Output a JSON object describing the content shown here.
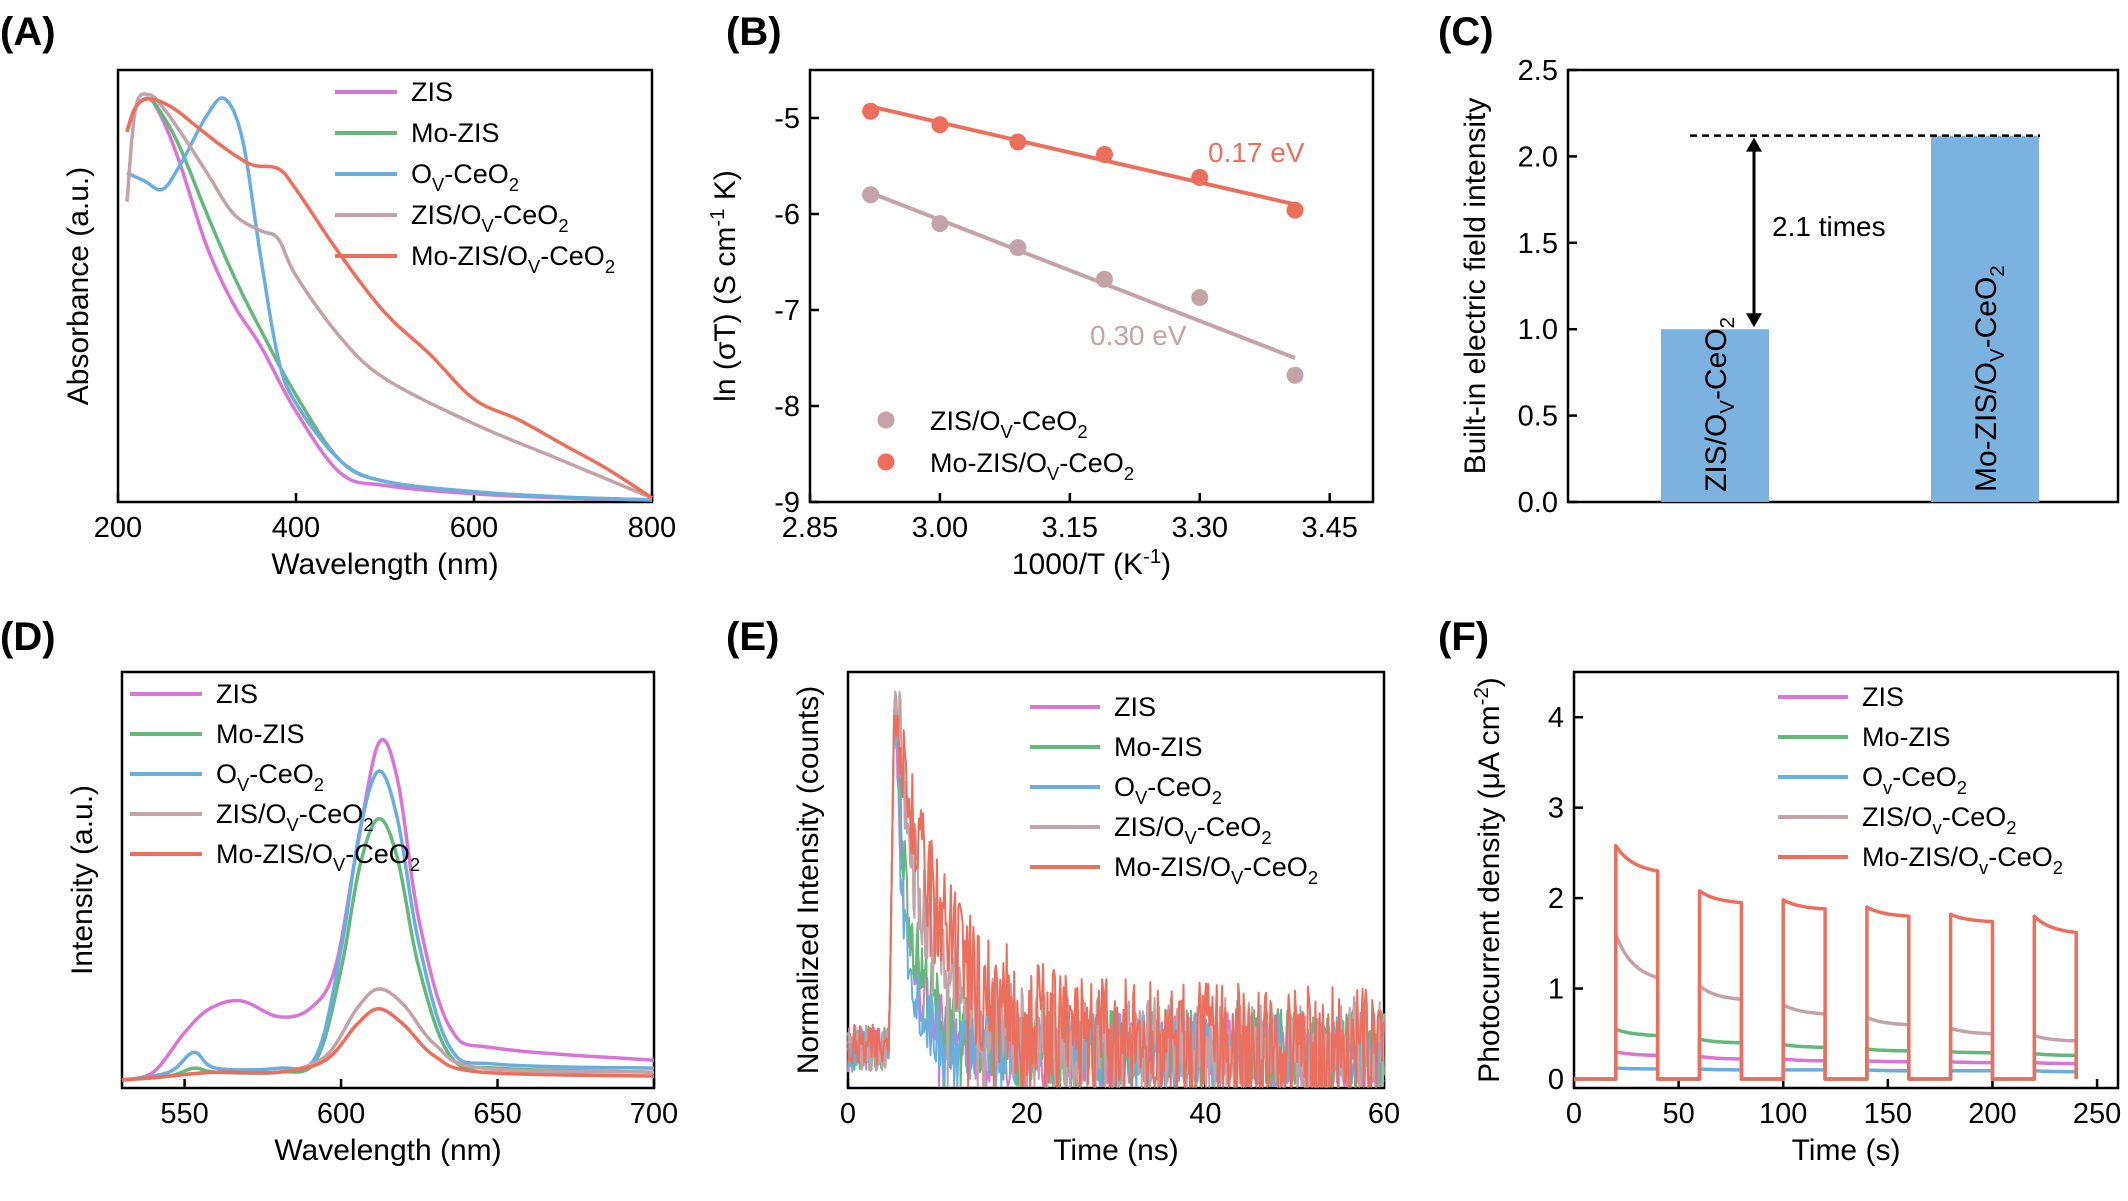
{
  "chart_data": [
    {
      "id": "A",
      "panel_label": "(A)",
      "type": "line",
      "title": "",
      "xlabel": "Wavelength (nm)",
      "ylabel": "Absorbance (a.u.)",
      "xlim": [
        200,
        800
      ],
      "ylim": [
        0,
        1.05
      ],
      "xticks": [
        200,
        400,
        600,
        800
      ],
      "yticks": [],
      "grid": false,
      "legend_position": "top-right",
      "series": [
        {
          "name": "ZIS",
          "color": "#d975d4",
          "x": [
            210,
            220,
            235,
            250,
            270,
            300,
            330,
            360,
            400,
            450,
            500,
            600,
            700,
            800
          ],
          "y": [
            0.9,
            0.96,
            0.98,
            0.93,
            0.82,
            0.62,
            0.48,
            0.38,
            0.22,
            0.07,
            0.04,
            0.02,
            0.01,
            0.005
          ]
        },
        {
          "name": "Mo-ZIS",
          "color": "#63b87a",
          "x": [
            210,
            220,
            235,
            250,
            270,
            300,
            330,
            360,
            400,
            450,
            500,
            600,
            700,
            800
          ],
          "y": [
            0.9,
            0.96,
            0.98,
            0.94,
            0.86,
            0.7,
            0.55,
            0.42,
            0.26,
            0.1,
            0.05,
            0.025,
            0.012,
            0.005
          ]
        },
        {
          "name": "OV-CeO2",
          "color": "#6aaedf",
          "x": [
            210,
            230,
            250,
            270,
            300,
            320,
            340,
            360,
            380,
            400,
            450,
            500,
            600,
            700,
            800
          ],
          "y": [
            0.8,
            0.78,
            0.76,
            0.82,
            0.94,
            0.98,
            0.88,
            0.6,
            0.35,
            0.24,
            0.1,
            0.05,
            0.025,
            0.012,
            0.005
          ]
        },
        {
          "name": "ZIS/OV-CeO2",
          "color": "#c4a3a8",
          "x": [
            210,
            220,
            235,
            250,
            270,
            300,
            330,
            360,
            380,
            400,
            450,
            500,
            600,
            700,
            800
          ],
          "y": [
            0.73,
            0.96,
            0.99,
            0.96,
            0.9,
            0.8,
            0.7,
            0.66,
            0.64,
            0.55,
            0.4,
            0.3,
            0.19,
            0.1,
            0.01
          ]
        },
        {
          "name": "Mo-ZIS/OV-CeO2",
          "color": "#ec6f5e",
          "x": [
            210,
            220,
            235,
            260,
            290,
            320,
            350,
            380,
            400,
            450,
            500,
            550,
            600,
            650,
            700,
            750,
            800
          ],
          "y": [
            0.9,
            0.96,
            0.98,
            0.96,
            0.91,
            0.86,
            0.82,
            0.81,
            0.76,
            0.6,
            0.46,
            0.36,
            0.25,
            0.2,
            0.14,
            0.08,
            0.01
          ]
        }
      ]
    },
    {
      "id": "B",
      "panel_label": "(B)",
      "type": "scatter",
      "title": "",
      "xlabel": "1000/T (K-1)",
      "ylabel": "ln (σT) (S cm-1 K)",
      "xlim": [
        2.85,
        3.5
      ],
      "ylim": [
        -9,
        -4.5
      ],
      "xticks": [
        2.85,
        3.0,
        3.15,
        3.3,
        3.45
      ],
      "xtick_labels": [
        "2.85",
        "3.00",
        "3.15",
        "3.30",
        "3.45"
      ],
      "yticks": [
        -9,
        -8,
        -7,
        -6,
        -5
      ],
      "grid": false,
      "legend_position": "bottom-left",
      "series": [
        {
          "name": "ZIS/OV-CeO2",
          "color": "#c4a3a8",
          "x": [
            2.92,
            3.0,
            3.09,
            3.19,
            3.3,
            3.41
          ],
          "y": [
            -5.8,
            -6.1,
            -6.35,
            -6.68,
            -6.87,
            -7.68
          ],
          "fit": [
            [
              2.92,
              -5.78
            ],
            [
              3.41,
              -7.5
            ]
          ],
          "annotation": "0.30 eV"
        },
        {
          "name": "Mo-ZIS/OV-CeO2",
          "color": "#ec6f5e",
          "x": [
            2.92,
            3.0,
            3.09,
            3.19,
            3.3,
            3.41
          ],
          "y": [
            -4.93,
            -5.07,
            -5.25,
            -5.38,
            -5.62,
            -5.96
          ],
          "fit": [
            [
              2.92,
              -4.88
            ],
            [
              3.41,
              -5.9
            ]
          ],
          "annotation": "0.17 eV"
        }
      ]
    },
    {
      "id": "C",
      "panel_label": "(C)",
      "type": "bar",
      "title": "",
      "xlabel": "",
      "ylabel": "Built-in electric field intensity",
      "ylim": [
        0,
        2.5
      ],
      "yticks": [
        0.0,
        0.5,
        1.0,
        1.5,
        2.0,
        2.5
      ],
      "ytick_labels": [
        "0.0",
        "0.5",
        "1.0",
        "1.5",
        "2.0",
        "2.5"
      ],
      "grid": false,
      "bar_color": "#7cb2df",
      "categories": [
        "ZIS/OV-CeO2",
        "Mo-ZIS/OV-CeO2"
      ],
      "values": [
        1.0,
        2.12
      ],
      "annotation": "2.1 times"
    },
    {
      "id": "D",
      "panel_label": "(D)",
      "type": "line",
      "title": "",
      "xlabel": "Wavelength (nm)",
      "ylabel": "Intensity (a.u.)",
      "xlim": [
        530,
        700
      ],
      "ylim": [
        0,
        1.05
      ],
      "xticks": [
        550,
        600,
        650,
        700
      ],
      "yticks": [],
      "grid": false,
      "legend_position": "top-left",
      "series": [
        {
          "name": "ZIS",
          "color": "#d975d4",
          "x": [
            530,
            540,
            550,
            558,
            568,
            580,
            590,
            598,
            605,
            612,
            618,
            625,
            635,
            650,
            700
          ],
          "y": [
            0.02,
            0.04,
            0.14,
            0.2,
            0.22,
            0.18,
            0.2,
            0.3,
            0.6,
            0.87,
            0.78,
            0.42,
            0.15,
            0.1,
            0.07
          ]
        },
        {
          "name": "Mo-ZIS",
          "color": "#63b87a",
          "x": [
            530,
            545,
            553,
            560,
            580,
            592,
            600,
            606,
            612,
            618,
            625,
            635,
            650,
            700
          ],
          "y": [
            0.02,
            0.03,
            0.05,
            0.04,
            0.04,
            0.07,
            0.3,
            0.56,
            0.68,
            0.58,
            0.3,
            0.08,
            0.05,
            0.04
          ]
        },
        {
          "name": "OV-CeO2",
          "color": "#6aaedf",
          "x": [
            530,
            545,
            553,
            560,
            580,
            592,
            600,
            606,
            612,
            618,
            625,
            635,
            650,
            700
          ],
          "y": [
            0.02,
            0.04,
            0.09,
            0.05,
            0.05,
            0.08,
            0.35,
            0.65,
            0.8,
            0.68,
            0.36,
            0.1,
            0.06,
            0.05
          ]
        },
        {
          "name": "ZIS/OV-CeO2",
          "color": "#c4a3a8",
          "x": [
            530,
            545,
            560,
            580,
            595,
            605,
            612,
            620,
            630,
            645,
            700
          ],
          "y": [
            0.02,
            0.03,
            0.04,
            0.04,
            0.08,
            0.2,
            0.25,
            0.21,
            0.11,
            0.05,
            0.04
          ]
        },
        {
          "name": "Mo-ZIS/OV-CeO2",
          "color": "#ec6f5e",
          "x": [
            530,
            545,
            560,
            580,
            595,
            605,
            612,
            620,
            630,
            645,
            700
          ],
          "y": [
            0.02,
            0.03,
            0.04,
            0.04,
            0.07,
            0.16,
            0.2,
            0.16,
            0.08,
            0.04,
            0.03
          ]
        }
      ]
    },
    {
      "id": "E",
      "panel_label": "(E)",
      "type": "line",
      "title": "",
      "xlabel": "Time (ns)",
      "ylabel": "Normalized Intensity (counts)",
      "xlim": [
        0,
        60
      ],
      "ylim": [
        0,
        1.05
      ],
      "xticks": [
        0,
        20,
        40,
        60
      ],
      "yticks": [],
      "grid": false,
      "legend_position": "top-right",
      "series": [
        {
          "name": "ZIS",
          "color": "#d975d4",
          "tau": 2.2,
          "noise": 0.09
        },
        {
          "name": "Mo-ZIS",
          "color": "#63b87a",
          "tau": 2.8,
          "noise": 0.1
        },
        {
          "name": "OV-CeO2",
          "color": "#6aaedf",
          "tau": 1.8,
          "noise": 0.09
        },
        {
          "name": "ZIS/OV-CeO2",
          "color": "#c4a3a8",
          "tau": 5.5,
          "noise": 0.13
        },
        {
          "name": "Mo-ZIS/OV-CeO2",
          "color": "#ec6f5e",
          "tau": 7.5,
          "noise": 0.16
        }
      ]
    },
    {
      "id": "F",
      "panel_label": "(F)",
      "type": "line",
      "title": "",
      "xlabel": "Time (s)",
      "ylabel": "Photocurrent density (μA cm-2)",
      "xlim": [
        0,
        260
      ],
      "ylim": [
        -0.1,
        4.5
      ],
      "xticks": [
        0,
        50,
        100,
        150,
        200,
        250
      ],
      "yticks": [
        0,
        1,
        2,
        3,
        4
      ],
      "grid": false,
      "legend_position": "top-right",
      "light_on_intervals": [
        [
          20,
          40
        ],
        [
          60,
          80
        ],
        [
          100,
          120
        ],
        [
          140,
          160
        ],
        [
          180,
          200
        ],
        [
          220,
          240
        ]
      ],
      "series": [
        {
          "name": "ZIS",
          "color": "#d975d4",
          "on_start": [
            0.3,
            0.25,
            0.22,
            0.2,
            0.19,
            0.18
          ],
          "on_end": [
            0.26,
            0.22,
            0.2,
            0.19,
            0.18,
            0.17
          ],
          "dark": 0.0
        },
        {
          "name": "Mo-ZIS",
          "color": "#63b87a",
          "on_start": [
            0.55,
            0.44,
            0.38,
            0.33,
            0.3,
            0.28
          ],
          "on_end": [
            0.48,
            0.4,
            0.35,
            0.31,
            0.29,
            0.26
          ],
          "dark": 0.0
        },
        {
          "name": "Ov-CeO2",
          "color": "#6aaedf",
          "on_start": [
            0.12,
            0.11,
            0.1,
            0.1,
            0.09,
            0.09
          ],
          "on_end": [
            0.11,
            0.1,
            0.1,
            0.09,
            0.09,
            0.08
          ],
          "dark": 0.0
        },
        {
          "name": "ZIS/Ov-CeO2",
          "color": "#c4a3a8",
          "on_start": [
            1.6,
            1.03,
            0.82,
            0.68,
            0.56,
            0.48
          ],
          "on_end": [
            1.12,
            0.88,
            0.72,
            0.6,
            0.5,
            0.42
          ],
          "dark": 0.0
        },
        {
          "name": "Mo-ZIS/Ov-CeO2",
          "color": "#ec6f5e",
          "on_start": [
            2.58,
            2.08,
            1.98,
            1.9,
            1.82,
            1.8
          ],
          "on_end": [
            2.3,
            1.95,
            1.88,
            1.8,
            1.74,
            1.62
          ],
          "dark": 0.0
        }
      ]
    }
  ]
}
